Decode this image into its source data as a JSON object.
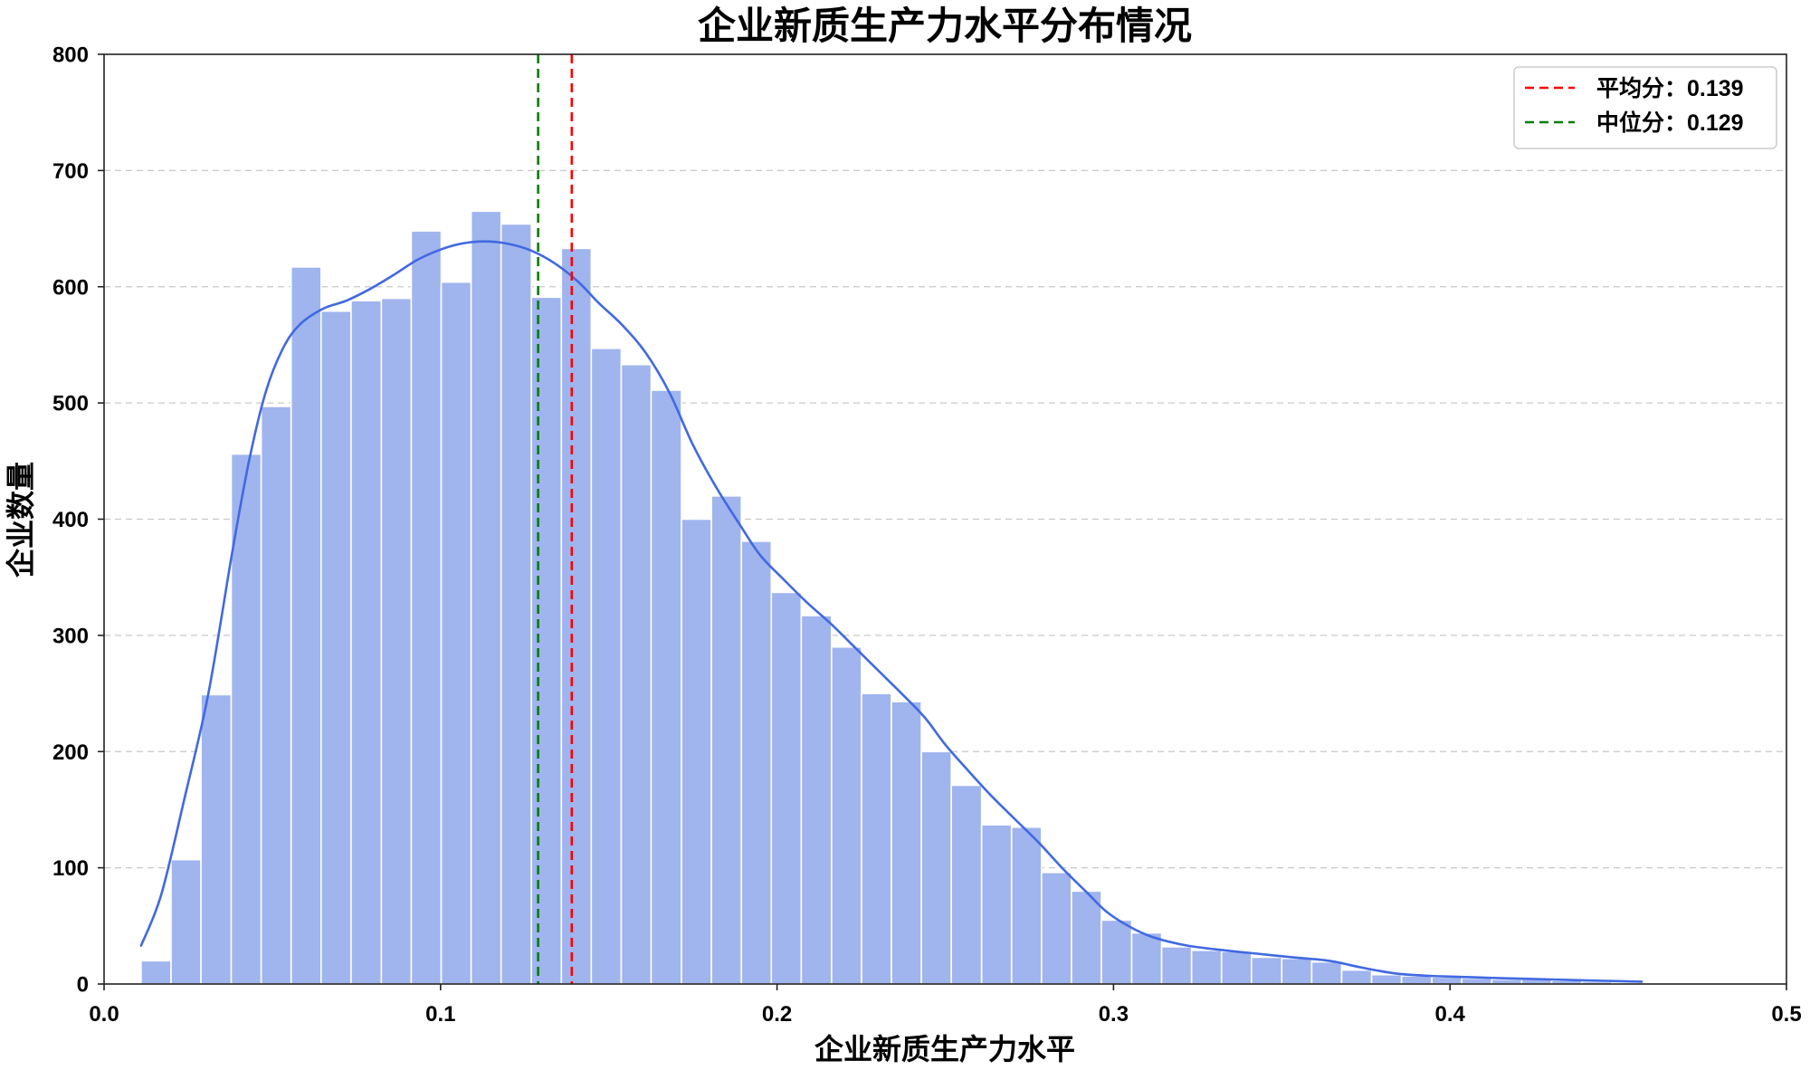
{
  "chart_data": {
    "type": "bar",
    "title": "企业新质生产力水平分布情况",
    "xlabel": "企业新质生产力水平",
    "ylabel": "企业数量",
    "xlim": [
      0,
      0.5
    ],
    "ylim": [
      0,
      800
    ],
    "xticks": [
      "0.0",
      "0.1",
      "0.2",
      "0.3",
      "0.4",
      "0.5"
    ],
    "yticks": [
      "0",
      "100",
      "200",
      "300",
      "400",
      "500",
      "600",
      "700",
      "800"
    ],
    "grid": true,
    "legend_position": "upper right",
    "histogram": {
      "color": "#a0b4ee",
      "bin_edges": [
        0.011,
        0.0199,
        0.0288,
        0.0378,
        0.0467,
        0.0556,
        0.0645,
        0.0734,
        0.0824,
        0.0913,
        0.1002,
        0.1091,
        0.118,
        0.127,
        0.1359,
        0.1448,
        0.1537,
        0.1626,
        0.1716,
        0.1805,
        0.1894,
        0.1983,
        0.2072,
        0.2162,
        0.2251,
        0.234,
        0.2429,
        0.2518,
        0.2608,
        0.2697,
        0.2786,
        0.2875,
        0.2964,
        0.3054,
        0.3143,
        0.3232,
        0.3321,
        0.341,
        0.35,
        0.3589,
        0.3678,
        0.3767,
        0.3856,
        0.3946,
        0.4035,
        0.4124,
        0.4213,
        0.4302,
        0.4392,
        0.4481,
        0.457
      ],
      "counts": [
        20,
        107,
        249,
        456,
        497,
        617,
        579,
        588,
        590,
        648,
        604,
        665,
        654,
        591,
        633,
        547,
        533,
        511,
        400,
        420,
        381,
        337,
        317,
        290,
        250,
        243,
        200,
        171,
        137,
        135,
        96,
        80,
        55,
        44,
        32,
        29,
        28,
        23,
        22,
        19,
        12,
        8,
        7,
        6,
        5,
        4,
        4,
        3,
        2,
        1
      ]
    },
    "kde": {
      "color": "#4169e1",
      "x": [
        0.011,
        0.017,
        0.024,
        0.031,
        0.038,
        0.043,
        0.048,
        0.053,
        0.058,
        0.065,
        0.072,
        0.079,
        0.086,
        0.093,
        0.1,
        0.106,
        0.113,
        0.12,
        0.127,
        0.134,
        0.141,
        0.147,
        0.154,
        0.161,
        0.168,
        0.175,
        0.182,
        0.189,
        0.195,
        0.202,
        0.209,
        0.216,
        0.223,
        0.23,
        0.237,
        0.244,
        0.25,
        0.257,
        0.264,
        0.271,
        0.278,
        0.285,
        0.292,
        0.298,
        0.305,
        0.312,
        0.322,
        0.333,
        0.343,
        0.353,
        0.364,
        0.374,
        0.384,
        0.394,
        0.405,
        0.415,
        0.429,
        0.442,
        0.457
      ],
      "y": [
        33,
        77,
        161,
        250,
        370,
        449,
        509,
        546,
        567,
        581,
        588,
        598,
        610,
        623,
        632,
        637,
        639,
        637,
        631,
        620,
        604,
        586,
        567,
        543,
        509,
        464,
        427,
        395,
        369,
        348,
        328,
        310,
        290,
        270,
        250,
        229,
        206,
        183,
        161,
        141,
        121,
        99,
        79,
        62,
        49,
        40,
        33,
        29,
        26,
        23,
        20,
        14,
        9,
        7,
        6,
        5,
        4,
        3,
        2
      ]
    },
    "reference_lines": [
      {
        "label": "平均分：0.139",
        "x": 0.139,
        "color": "#ff0000"
      },
      {
        "label": "中位分：0.129",
        "x": 0.129,
        "color": "#008000"
      }
    ]
  }
}
